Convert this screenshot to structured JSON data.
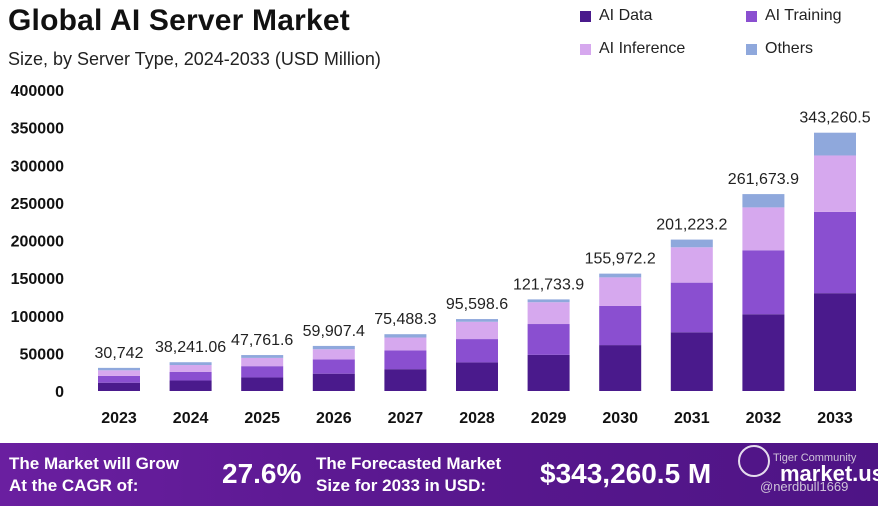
{
  "header": {
    "title": "Global AI Server Market",
    "subtitle": "Size, by Server Type, 2024-2033 (USD Million)"
  },
  "legend": [
    {
      "label": "AI Data",
      "color": "#4a1a8c"
    },
    {
      "label": "AI Training",
      "color": "#8a4fd0"
    },
    {
      "label": "AI Inference",
      "color": "#d6a8ee"
    },
    {
      "label": "Others",
      "color": "#8fa8dc"
    }
  ],
  "chart_data": {
    "type": "bar",
    "stacked": true,
    "categories": [
      "2023",
      "2024",
      "2025",
      "2026",
      "2027",
      "2028",
      "2029",
      "2030",
      "2031",
      "2032",
      "2033"
    ],
    "series": [
      {
        "name": "AI Data",
        "color": "#4a1a8c",
        "values": [
          11000,
          14000,
          18000,
          23000,
          29000,
          38000,
          48000,
          61000,
          78000,
          102000,
          130000
        ]
      },
      {
        "name": "AI Training",
        "color": "#8a4fd0",
        "values": [
          9000,
          11500,
          15000,
          19000,
          25000,
          31000,
          41000,
          52000,
          66000,
          85000,
          108000
        ]
      },
      {
        "name": "AI Inference",
        "color": "#d6a8ee",
        "values": [
          7500,
          9000,
          11000,
          13500,
          17000,
          23000,
          29000,
          38000,
          47000,
          57000,
          75000
        ]
      },
      {
        "name": "Others",
        "color": "#8fa8dc",
        "values": [
          3242,
          3741.06,
          3761.6,
          4407.4,
          4488.3,
          3598.6,
          3733.9,
          4972.2,
          10223.2,
          17673.9,
          30260.5
        ]
      }
    ],
    "totals": [
      30742,
      38241.06,
      47761.6,
      59907.4,
      75488.3,
      95598.6,
      121733.9,
      155972.2,
      201223.2,
      261673.9,
      343260.5
    ],
    "total_labels": [
      "30,742",
      "38,241.06",
      "47,761.6",
      "59,907.4",
      "75,488.3",
      "95,598.6",
      "121,733.9",
      "155,972.2",
      "201,223.2",
      "261,673.9",
      "343,260.5"
    ],
    "yticks": [
      "0",
      "50000",
      "100000",
      "150000",
      "200000",
      "250000",
      "300000",
      "350000",
      "400000"
    ],
    "ylim": [
      0,
      400000
    ],
    "grid": false,
    "legend_position": "top-right"
  },
  "footer": {
    "cagr_label_line1": "The Market will Grow",
    "cagr_label_line2": "At the CAGR of:",
    "cagr_value": "27.6%",
    "forecast_label_line1": "The Forecasted Market",
    "forecast_label_line2": "Size for 2033 in USD:",
    "forecast_value": "$343,260.5 M",
    "brand": "market.us",
    "watermark_top": "Tiger Community",
    "watermark_bottom": "@nerdbull1669"
  }
}
